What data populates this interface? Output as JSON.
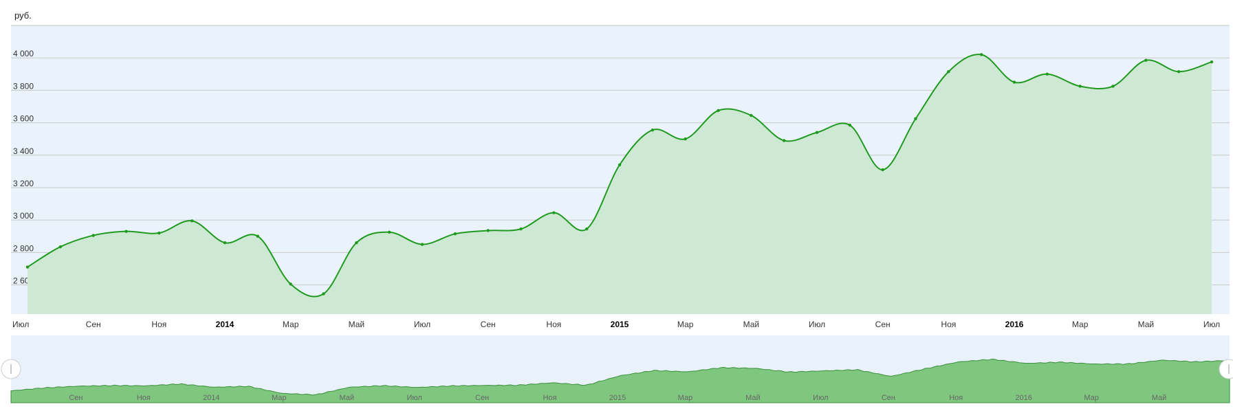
{
  "chart_data": {
    "type": "area",
    "ylabel": "руб.",
    "ylim": [
      2420,
      4200
    ],
    "y_ticks": [
      {
        "value": 2600,
        "label": "2 600"
      },
      {
        "value": 2800,
        "label": "2 800"
      },
      {
        "value": 3000,
        "label": "3 000"
      },
      {
        "value": 3200,
        "label": "3 200"
      },
      {
        "value": 3400,
        "label": "3 400"
      },
      {
        "value": 3600,
        "label": "3 600"
      },
      {
        "value": 3800,
        "label": "3 800"
      },
      {
        "value": 4000,
        "label": "4 000"
      }
    ],
    "x_ticks": [
      {
        "date": "2013-07",
        "label": "Июл",
        "bold": false
      },
      {
        "date": "2013-09",
        "label": "Сен",
        "bold": false
      },
      {
        "date": "2013-11",
        "label": "Ноя",
        "bold": false
      },
      {
        "date": "2014-01",
        "label": "2014",
        "bold": true
      },
      {
        "date": "2014-03",
        "label": "Мар",
        "bold": false
      },
      {
        "date": "2014-05",
        "label": "Май",
        "bold": false
      },
      {
        "date": "2014-07",
        "label": "Июл",
        "bold": false
      },
      {
        "date": "2014-09",
        "label": "Сен",
        "bold": false
      },
      {
        "date": "2014-11",
        "label": "Ноя",
        "bold": false
      },
      {
        "date": "2015-01",
        "label": "2015",
        "bold": true
      },
      {
        "date": "2015-03",
        "label": "Мар",
        "bold": false
      },
      {
        "date": "2015-05",
        "label": "Май",
        "bold": false
      },
      {
        "date": "2015-07",
        "label": "Июл",
        "bold": false
      },
      {
        "date": "2015-09",
        "label": "Сен",
        "bold": false
      },
      {
        "date": "2015-11",
        "label": "Ноя",
        "bold": false
      },
      {
        "date": "2016-01",
        "label": "2016",
        "bold": true
      },
      {
        "date": "2016-03",
        "label": "Мар",
        "bold": false
      },
      {
        "date": "2016-05",
        "label": "Май",
        "bold": false
      },
      {
        "date": "2016-07",
        "label": "Июл",
        "bold": false
      }
    ],
    "series": [
      {
        "x": [
          "2013-07",
          "2013-08",
          "2013-09",
          "2013-10",
          "2013-11",
          "2013-12",
          "2014-01",
          "2014-02",
          "2014-03",
          "2014-04",
          "2014-05",
          "2014-06",
          "2014-07",
          "2014-08",
          "2014-09",
          "2014-10",
          "2014-11",
          "2014-12",
          "2015-01",
          "2015-02",
          "2015-03",
          "2015-04",
          "2015-05",
          "2015-06",
          "2015-07",
          "2015-08",
          "2015-09",
          "2015-10",
          "2015-11",
          "2015-12",
          "2016-01",
          "2016-02",
          "2016-03",
          "2016-04",
          "2016-05",
          "2016-06",
          "2016-07"
        ],
        "values": [
          2710,
          2835,
          2905,
          2930,
          2920,
          2995,
          2860,
          2900,
          2605,
          2545,
          2860,
          2925,
          2850,
          2915,
          2935,
          2945,
          3045,
          2945,
          3340,
          3555,
          3500,
          3675,
          3645,
          3490,
          3540,
          3585,
          3310,
          3625,
          3915,
          4020,
          3850,
          3900,
          3825,
          3825,
          3985,
          3915,
          3975
        ]
      }
    ],
    "navigator_ticks": [
      "Сен",
      "Ноя",
      "2014",
      "Мар",
      "Май",
      "Июл",
      "Сен",
      "Ноя",
      "2015",
      "Мар",
      "Май",
      "Июл",
      "Сен",
      "Ноя",
      "2016",
      "Мар",
      "Май"
    ],
    "colors": {
      "line": "#1f9a1f",
      "area": "#cde9d4",
      "plot_bg": "#eaf3fb",
      "grid": "#c8c8c8",
      "nav_bg": "#e9f2fb",
      "nav_area": "#7fc77f",
      "nav_line": "#3a8f3a"
    },
    "grid": true,
    "legend": "none"
  }
}
